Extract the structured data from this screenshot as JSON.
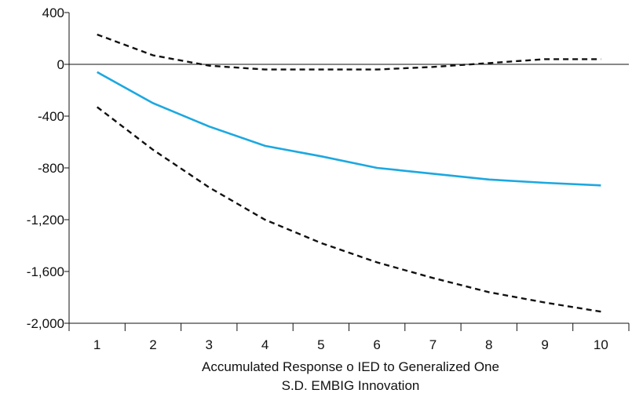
{
  "chart_data": {
    "type": "line",
    "x": [
      1,
      2,
      3,
      4,
      5,
      6,
      7,
      8,
      9,
      10
    ],
    "xlim": [
      0.5,
      10.5
    ],
    "ylim": [
      -2000,
      400
    ],
    "y_ticks": [
      400,
      0,
      -400,
      -800,
      -1200,
      -1600,
      -2000
    ],
    "y_tick_labels": [
      "400",
      "0",
      "-400",
      "-800",
      "-1,200",
      "-1,600",
      "-2,000"
    ],
    "x_tick_labels": [
      "1",
      "2",
      "3",
      "4",
      "5",
      "6",
      "7",
      "8",
      "9",
      "10"
    ],
    "zero_line": true,
    "grid": false,
    "legend": "none",
    "caption": [
      "Accumulated Response o IED to Generalized One",
      "S.D. EMBIG Innovation"
    ],
    "series": [
      {
        "role": "response",
        "style": "solid",
        "color": "#1ca8e0",
        "values": [
          -60,
          -300,
          -480,
          -630,
          -710,
          -800,
          -845,
          -890,
          -915,
          -935
        ]
      },
      {
        "role": "upper band",
        "style": "dashed",
        "color": "#111111",
        "values": [
          230,
          70,
          -10,
          -40,
          -40,
          -40,
          -20,
          10,
          40,
          40
        ]
      },
      {
        "role": "lower band",
        "style": "dashed",
        "color": "#111111",
        "values": [
          -330,
          -660,
          -950,
          -1200,
          -1380,
          -1530,
          -1650,
          -1760,
          -1840,
          -1910
        ]
      }
    ]
  }
}
